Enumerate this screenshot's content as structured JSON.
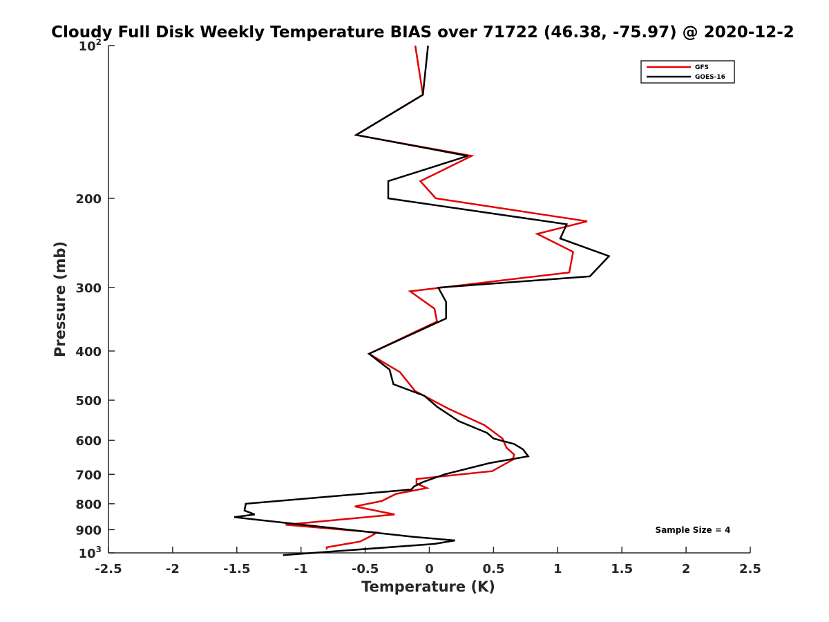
{
  "chart_data": {
    "type": "line",
    "title": "Cloudy Full Disk Weekly Temperature BIAS over 71722 (46.38, -75.97) @ 2020-12-2",
    "xlabel": "Temperature (K)",
    "ylabel": "Pressure (mb)",
    "xlim": [
      -2.5,
      2.5
    ],
    "ylim": [
      100,
      1000
    ],
    "yscale": "log",
    "y_reversed": true,
    "x_ticks": [
      "-2.5",
      "-2",
      "-1.5",
      "-1",
      "-0.5",
      "0",
      "0.5",
      "1",
      "1.5",
      "2",
      "2.5"
    ],
    "y_ticks": [
      {
        "value": 100,
        "base": "10",
        "exp": "2"
      },
      {
        "value": 200,
        "label": "200"
      },
      {
        "value": 300,
        "label": "300"
      },
      {
        "value": 400,
        "label": "400"
      },
      {
        "value": 500,
        "label": "500"
      },
      {
        "value": 600,
        "label": "600"
      },
      {
        "value": 700,
        "label": "700"
      },
      {
        "value": 800,
        "label": "800"
      },
      {
        "value": 900,
        "label": "900"
      },
      {
        "value": 1000,
        "base": "10",
        "exp": "3"
      }
    ],
    "legend_position": "top-right",
    "annotation": "Sample Size = 4",
    "series": [
      {
        "name": "GFS",
        "color": "#e00000",
        "x": [
          -0.11,
          -0.05,
          -0.57,
          0.33,
          -0.07,
          0.05,
          1.23,
          0.84,
          1.12,
          1.09,
          -0.15,
          0.04,
          0.06,
          -0.47,
          -0.23,
          -0.11,
          0.15,
          0.43,
          0.57,
          0.6,
          0.66,
          0.65,
          0.49,
          -0.1,
          -0.1,
          -0.02,
          -0.26,
          -0.37,
          -0.58,
          -0.27,
          -1.12,
          -0.41,
          -0.45,
          -0.54,
          -0.8,
          -0.8
        ],
        "y": [
          100,
          125,
          150,
          165,
          185,
          200,
          222,
          235,
          255,
          280,
          305,
          330,
          350,
          405,
          440,
          480,
          520,
          560,
          595,
          620,
          640,
          655,
          690,
          715,
          730,
          745,
          765,
          790,
          810,
          840,
          880,
          912,
          925,
          950,
          975,
          985
        ]
      },
      {
        "name": "GOES-16",
        "color": "#000000",
        "x": [
          -0.01,
          -0.05,
          -0.57,
          0.3,
          -0.32,
          -0.32,
          1.07,
          1.02,
          1.4,
          1.25,
          0.07,
          0.13,
          0.13,
          -0.47,
          -0.31,
          -0.28,
          -0.04,
          0.06,
          0.23,
          0.45,
          0.5,
          0.66,
          0.73,
          0.77,
          0.47,
          0.12,
          -0.05,
          -0.12,
          -0.14,
          -1.43,
          -1.44,
          -1.36,
          -1.52,
          -1.35,
          -0.12,
          0.2,
          0.04,
          -1.14
        ],
        "y": [
          100,
          125,
          150,
          165,
          185,
          200,
          225,
          240,
          260,
          285,
          300,
          320,
          345,
          405,
          435,
          465,
          490,
          515,
          550,
          580,
          595,
          610,
          625,
          645,
          665,
          700,
          725,
          740,
          750,
          800,
          825,
          840,
          850,
          860,
          930,
          945,
          960,
          1010
        ]
      }
    ]
  }
}
